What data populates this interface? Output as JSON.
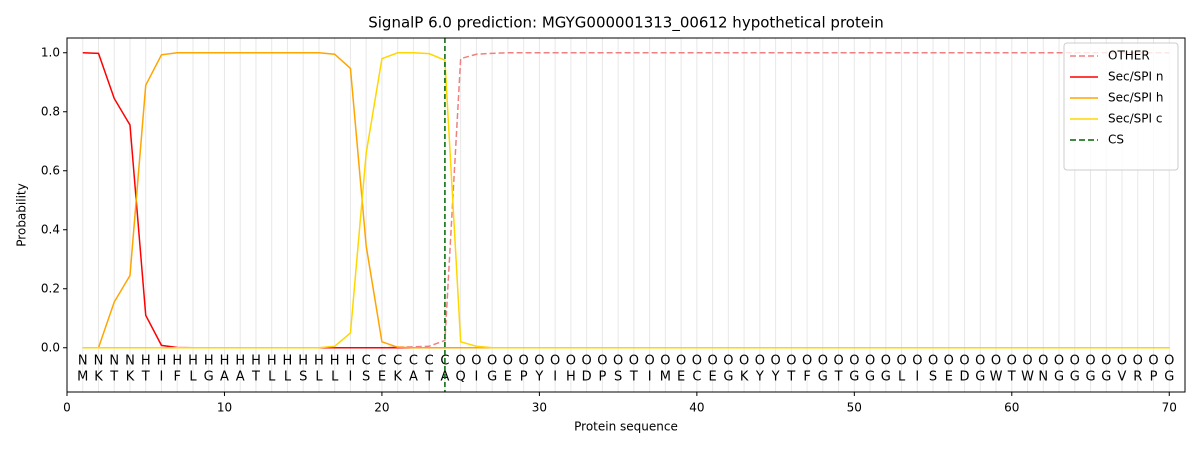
{
  "chart_data": {
    "type": "line",
    "title": "SignalP 6.0 prediction: MGYG000001313_00612 hypothetical protein",
    "x_label": "Protein sequence",
    "y_label": "Probability",
    "xlim": [
      0,
      71
    ],
    "ylim": [
      -0.15,
      1.05
    ],
    "xticks": [
      0,
      10,
      20,
      30,
      40,
      50,
      60,
      70
    ],
    "yticks": [
      {
        "value": 0,
        "label": "0.0"
      },
      {
        "value": 0.2,
        "label": "0.2"
      },
      {
        "value": 0.4,
        "label": "0.4"
      },
      {
        "value": 0.6,
        "label": "0.6"
      },
      {
        "value": 0.8,
        "label": "0.8"
      },
      {
        "value": 1,
        "label": "1.0"
      }
    ],
    "position_grid": true,
    "legend": "upper right",
    "x": [
      1,
      2,
      3,
      4,
      5,
      6,
      7,
      8,
      9,
      10,
      11,
      12,
      13,
      14,
      15,
      16,
      17,
      18,
      19,
      20,
      21,
      22,
      23,
      24,
      25,
      26,
      27,
      28,
      29,
      30,
      31,
      32,
      33,
      34,
      35,
      36,
      37,
      38,
      39,
      40,
      41,
      42,
      43,
      44,
      45,
      46,
      47,
      48,
      49,
      50,
      51,
      52,
      53,
      54,
      55,
      56,
      57,
      58,
      59,
      60,
      61,
      62,
      63,
      64,
      65,
      66,
      67,
      68,
      69,
      70
    ],
    "sequence": [
      "M",
      "K",
      "T",
      "K",
      "T",
      "I",
      "F",
      "L",
      "G",
      "A",
      "A",
      "T",
      "L",
      "L",
      "S",
      "L",
      "L",
      "I",
      "S",
      "E",
      "K",
      "A",
      "T",
      "A",
      "Q",
      "I",
      "G",
      "E",
      "P",
      "Y",
      "I",
      "H",
      "D",
      "P",
      "S",
      "T",
      "I",
      "M",
      "E",
      "C",
      "E",
      "G",
      "K",
      "Y",
      "Y",
      "T",
      "F",
      "G",
      "T",
      "G",
      "G",
      "G",
      "L",
      "I",
      "S",
      "E",
      "D",
      "G",
      "W",
      "T",
      "W",
      "N",
      "G",
      "G",
      "G",
      "G",
      "V",
      "R",
      "P",
      "G"
    ],
    "regions": [
      "N",
      "N",
      "N",
      "N",
      "H",
      "H",
      "H",
      "H",
      "H",
      "H",
      "H",
      "H",
      "H",
      "H",
      "H",
      "H",
      "H",
      "H",
      "C",
      "C",
      "C",
      "C",
      "C",
      "C",
      "O",
      "O",
      "O",
      "O",
      "O",
      "O",
      "O",
      "O",
      "O",
      "O",
      "O",
      "O",
      "O",
      "O",
      "O",
      "O",
      "O",
      "O",
      "O",
      "O",
      "O",
      "O",
      "O",
      "O",
      "O",
      "O",
      "O",
      "O",
      "O",
      "O",
      "O",
      "O",
      "O",
      "O",
      "O",
      "O",
      "O",
      "O",
      "O",
      "O",
      "O",
      "O",
      "O",
      "O",
      "O",
      "O"
    ],
    "region_colors": {
      "N": "#ff0000",
      "H": "#ffa500",
      "C": "#ffc000",
      "O": "#808080"
    },
    "series": [
      {
        "name": "OTHER",
        "color": "#f08080",
        "dashed": true,
        "values": [
          0,
          0,
          0,
          0,
          0,
          0,
          0,
          0,
          0,
          0,
          0,
          0,
          0,
          0,
          0,
          0,
          0,
          0,
          0,
          0,
          0.002,
          0.003,
          0.005,
          0.025,
          0.98,
          0.995,
          0.998,
          1,
          1,
          1,
          1,
          1,
          1,
          1,
          1,
          1,
          1,
          1,
          1,
          1,
          1,
          1,
          1,
          1,
          1,
          1,
          1,
          1,
          1,
          1,
          1,
          1,
          1,
          1,
          1,
          1,
          1,
          1,
          1,
          1,
          1,
          1,
          1,
          1,
          1,
          1,
          1,
          1,
          1,
          1
        ]
      },
      {
        "name": "Sec/SPI n",
        "color": "#ff0000",
        "values": [
          1.0,
          0.998,
          0.845,
          0.755,
          0.11,
          0.008,
          0.001,
          0,
          0,
          0,
          0,
          0,
          0,
          0,
          0,
          0,
          0,
          0,
          0,
          0,
          0,
          0,
          0,
          0,
          0,
          0,
          0,
          0,
          0,
          0,
          0,
          0,
          0,
          0,
          0,
          0,
          0,
          0,
          0,
          0,
          0,
          0,
          0,
          0,
          0,
          0,
          0,
          0,
          0,
          0,
          0,
          0,
          0,
          0,
          0,
          0,
          0,
          0,
          0,
          0,
          0,
          0,
          0,
          0,
          0,
          0,
          0,
          0,
          0,
          0
        ]
      },
      {
        "name": "Sec/SPI h",
        "color": "#ffa500",
        "values": [
          0,
          0,
          0.155,
          0.245,
          0.89,
          0.993,
          1,
          1,
          1,
          1,
          1,
          1,
          1,
          1,
          1,
          1,
          0.995,
          0.947,
          0.345,
          0.02,
          0.002,
          0,
          0,
          0,
          0,
          0,
          0,
          0,
          0,
          0,
          0,
          0,
          0,
          0,
          0,
          0,
          0,
          0,
          0,
          0,
          0,
          0,
          0,
          0,
          0,
          0,
          0,
          0,
          0,
          0,
          0,
          0,
          0,
          0,
          0,
          0,
          0,
          0,
          0,
          0,
          0,
          0,
          0,
          0,
          0,
          0,
          0,
          0,
          0,
          0
        ]
      },
      {
        "name": "Sec/SPI c",
        "color": "#ffd700",
        "values": [
          0,
          0,
          0,
          0,
          0,
          0,
          0,
          0,
          0,
          0,
          0,
          0,
          0,
          0,
          0,
          0,
          0.005,
          0.05,
          0.66,
          0.98,
          1,
          1,
          0.997,
          0.975,
          0.02,
          0.005,
          0,
          0,
          0,
          0,
          0,
          0,
          0,
          0,
          0,
          0,
          0,
          0,
          0,
          0,
          0,
          0,
          0,
          0,
          0,
          0,
          0,
          0,
          0,
          0,
          0,
          0,
          0,
          0,
          0,
          0,
          0,
          0,
          0,
          0,
          0,
          0,
          0,
          0,
          0,
          0,
          0,
          0,
          0,
          0
        ]
      }
    ],
    "cs_label": "CS",
    "cs_position": 24,
    "cs_color": "#006400"
  }
}
